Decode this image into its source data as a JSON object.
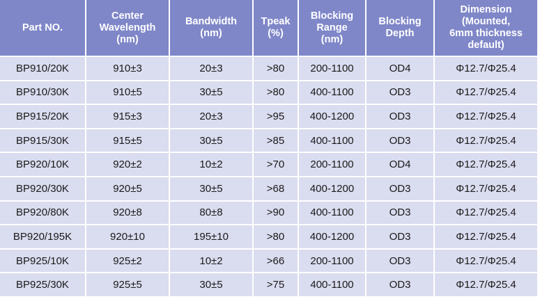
{
  "table": {
    "header": [
      [
        "Part NO."
      ],
      [
        "Center",
        "Wavelength",
        "(nm)"
      ],
      [
        "Bandwidth",
        "(nm)"
      ],
      [
        "Tpeak",
        "(%)"
      ],
      [
        "Blocking",
        "Range",
        "(nm)"
      ],
      [
        "Blocking",
        "Depth"
      ],
      [
        "Dimension",
        "(Mounted,",
        "6mm thickness",
        "default)"
      ]
    ],
    "rows": [
      [
        "BP910/20K",
        "910±3",
        "20±3",
        ">80",
        "200-1100",
        "OD4",
        "Φ12.7/Φ25.4"
      ],
      [
        "BP910/30K",
        "910±5",
        "30±5",
        ">80",
        "400-1100",
        "OD3",
        "Φ12.7/Φ25.4"
      ],
      [
        "BP915/20K",
        "915±3",
        "20±3",
        ">95",
        "400-1200",
        "OD3",
        "Φ12.7/Φ25.4"
      ],
      [
        "BP915/30K",
        "915±5",
        "30±5",
        ">85",
        "400-1100",
        "OD3",
        "Φ12.7/Φ25.4"
      ],
      [
        "BP920/10K",
        "920±2",
        "10±2",
        ">70",
        "200-1100",
        "OD4",
        "Φ12.7/Φ25.4"
      ],
      [
        "BP920/30K",
        "920±5",
        "30±5",
        ">68",
        "400-1200",
        "OD3",
        "Φ12.7/Φ25.4"
      ],
      [
        "BP920/80K",
        "920±8",
        "80±8",
        ">90",
        "400-1100",
        "OD3",
        "Φ12.7/Φ25.4"
      ],
      [
        "BP920/195K",
        "920±10",
        "195±10",
        ">80",
        "400-1200",
        "OD3",
        "Φ12.7/Φ25.4"
      ],
      [
        "BP925/10K",
        "925±2",
        "10±2",
        ">66",
        "200-1100",
        "OD3",
        "Φ12.7/Φ25.4"
      ],
      [
        "BP925/30K",
        "925±5",
        "30±5",
        ">75",
        "400-1100",
        "OD3",
        "Φ12.7/Φ25.4"
      ]
    ]
  }
}
